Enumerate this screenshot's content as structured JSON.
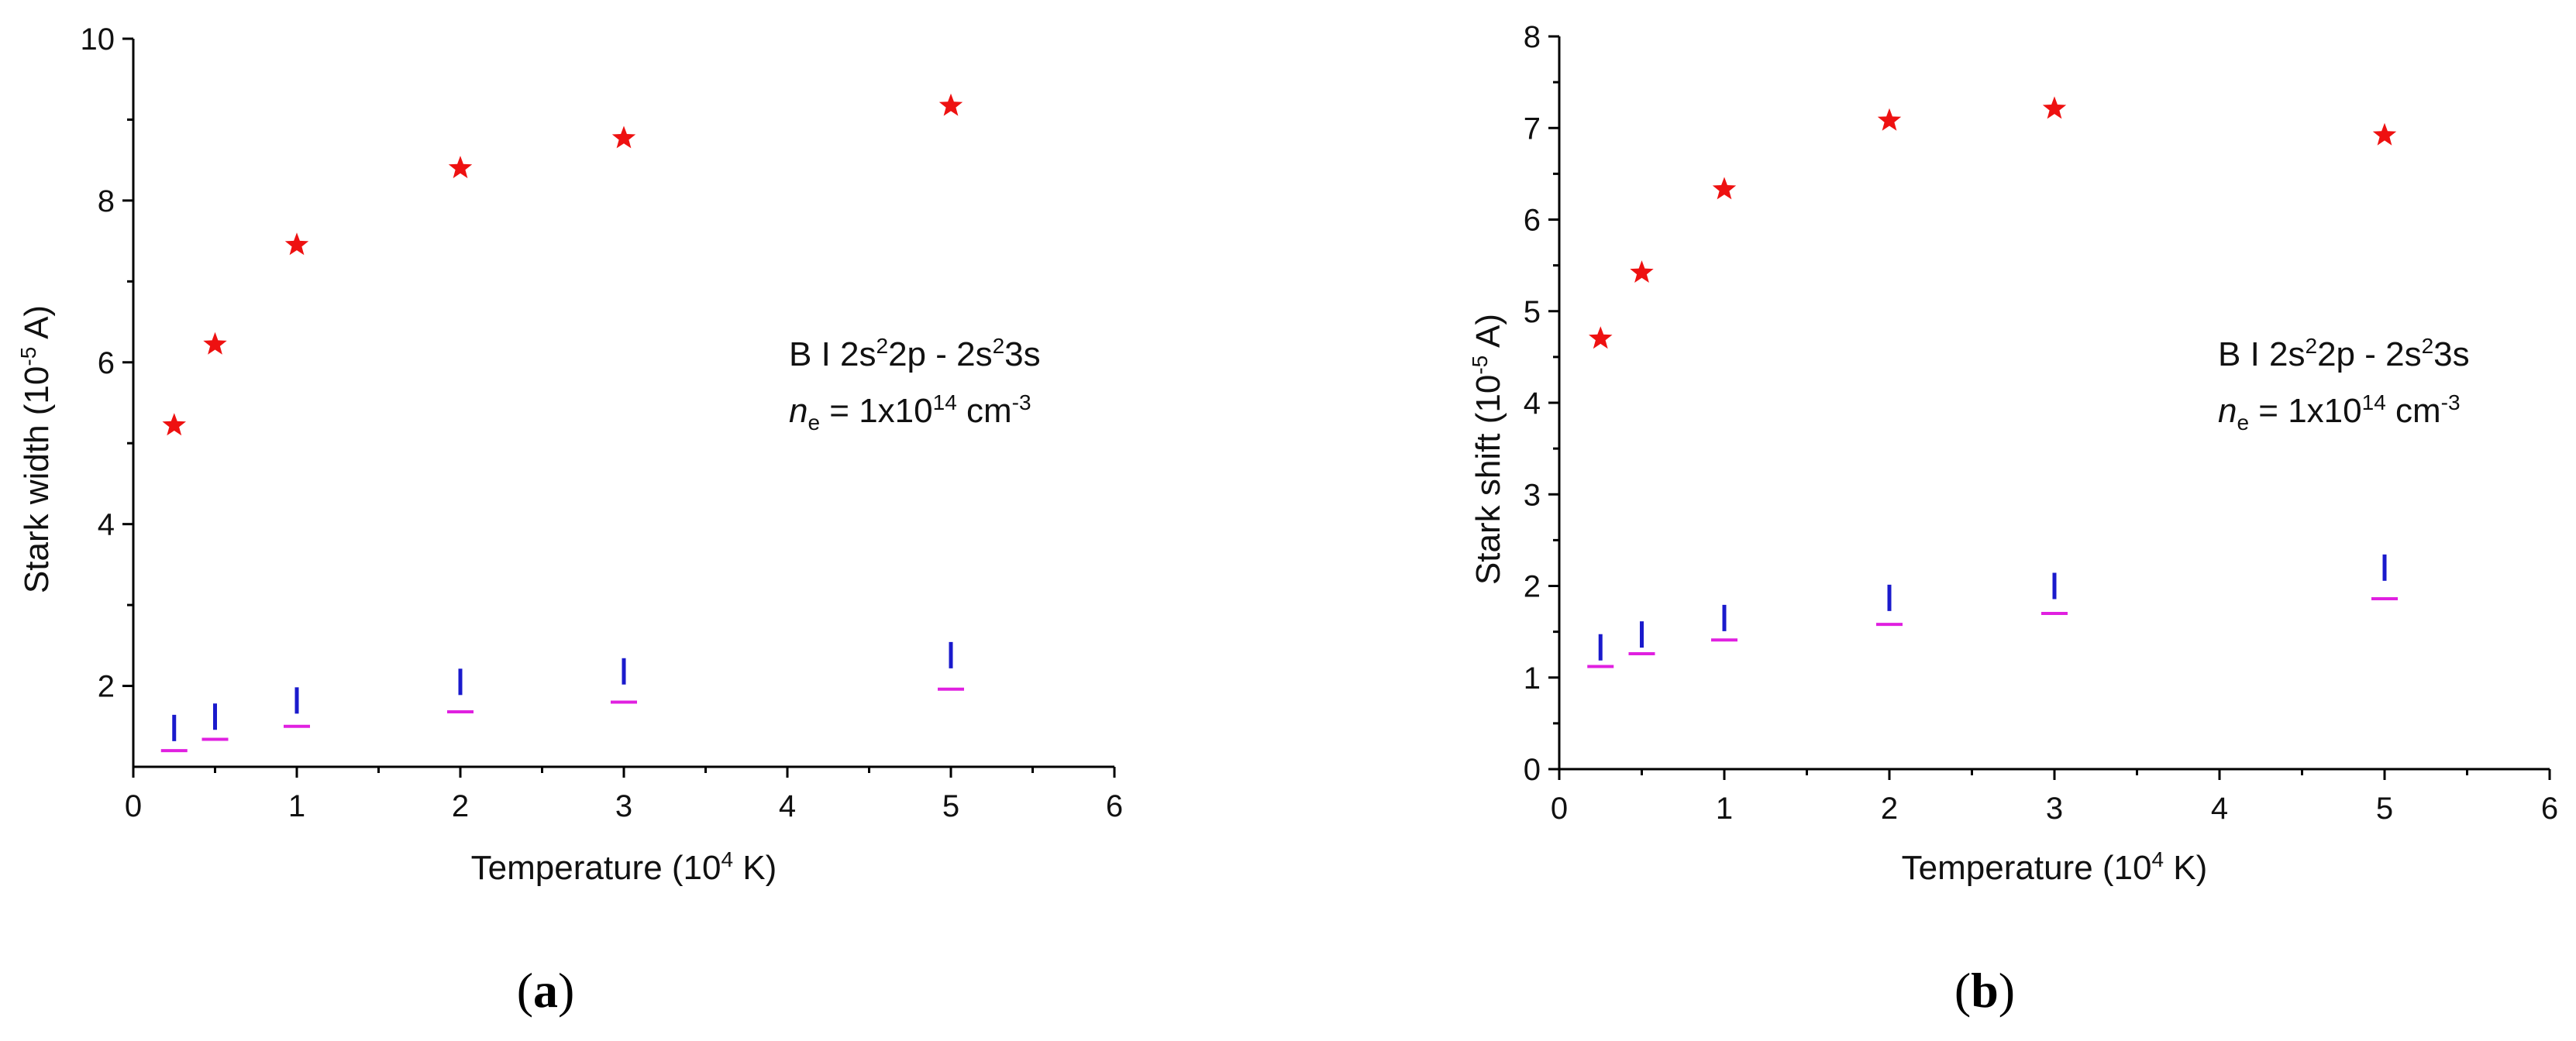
{
  "chart_data": [
    {
      "type": "scatter",
      "panel_label": "a",
      "ylabel_main": "Stark width (10",
      "ylabel_sup": "-5",
      "ylabel_tail": " A)",
      "xlabel_main": "Temperature (10",
      "xlabel_sup": "4",
      "xlabel_tail": " K)",
      "xlim": [
        0,
        6
      ],
      "ylim": [
        1,
        10
      ],
      "xticks": [
        0,
        1,
        2,
        3,
        4,
        5,
        6
      ],
      "yticks": [
        2,
        4,
        6,
        8,
        10
      ],
      "annotation": {
        "line1": [
          "B I 2s",
          "2",
          "2p - 2s",
          "2",
          "3s"
        ],
        "line2_italic": "n",
        "line2_sub": "e",
        "line2_text": " = 1x10",
        "line2_sup": "14",
        "line2_text2": " cm",
        "line2_sup2": "-3"
      },
      "series": [
        {
          "marker": "star",
          "color": "#ee1111",
          "points": [
            [
              0.25,
              5.22
            ],
            [
              0.5,
              6.22
            ],
            [
              1,
              7.45
            ],
            [
              2,
              8.4
            ],
            [
              3,
              8.77
            ],
            [
              5,
              9.17
            ]
          ]
        },
        {
          "marker": "vbar",
          "color": "#1a1acc",
          "points": [
            [
              0.25,
              1.48
            ],
            [
              0.5,
              1.62
            ],
            [
              1,
              1.82
            ],
            [
              2,
              2.05
            ],
            [
              3,
              2.18
            ],
            [
              5,
              2.38
            ]
          ]
        },
        {
          "marker": "hbar",
          "color": "#e020e0",
          "points": [
            [
              0.25,
              1.2
            ],
            [
              0.5,
              1.34
            ],
            [
              1,
              1.5
            ],
            [
              2,
              1.68
            ],
            [
              3,
              1.8
            ],
            [
              5,
              1.96
            ]
          ]
        }
      ]
    },
    {
      "type": "scatter",
      "panel_label": "b",
      "ylabel_main": "Stark shift (10",
      "ylabel_sup": "-5",
      "ylabel_tail": " A)",
      "xlabel_main": "Temperature (10",
      "xlabel_sup": "4",
      "xlabel_tail": " K)",
      "xlim": [
        0,
        6
      ],
      "ylim": [
        0,
        8
      ],
      "xticks": [
        0,
        1,
        2,
        3,
        4,
        5,
        6
      ],
      "yticks": [
        0,
        1,
        2,
        3,
        4,
        5,
        6,
        7,
        8
      ],
      "annotation": {
        "line1": [
          "B I 2s",
          "2",
          "2p - 2s",
          "2",
          "3s"
        ],
        "line2_italic": "n",
        "line2_sub": "e",
        "line2_text": " = 1x10",
        "line2_sup": "14",
        "line2_text2": " cm",
        "line2_sup2": "-3"
      },
      "series": [
        {
          "marker": "star",
          "color": "#ee1111",
          "points": [
            [
              0.25,
              4.7
            ],
            [
              0.5,
              5.42
            ],
            [
              1,
              6.33
            ],
            [
              2,
              7.08
            ],
            [
              3,
              7.21
            ],
            [
              5,
              6.92
            ]
          ]
        },
        {
          "marker": "vbar",
          "color": "#1a1acc",
          "points": [
            [
              0.25,
              1.33
            ],
            [
              0.5,
              1.47
            ],
            [
              1,
              1.65
            ],
            [
              2,
              1.87
            ],
            [
              3,
              2.0
            ],
            [
              5,
              2.2
            ]
          ]
        },
        {
          "marker": "hbar",
          "color": "#e020e0",
          "points": [
            [
              0.25,
              1.12
            ],
            [
              0.5,
              1.26
            ],
            [
              1,
              1.41
            ],
            [
              2,
              1.58
            ],
            [
              3,
              1.7
            ],
            [
              5,
              1.86
            ]
          ]
        }
      ]
    }
  ]
}
